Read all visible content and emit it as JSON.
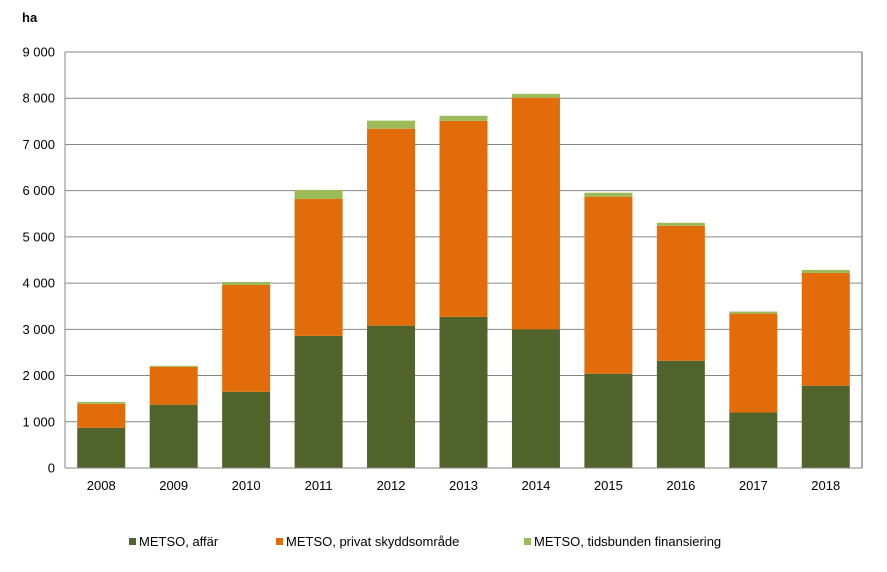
{
  "chart_data": {
    "type": "bar",
    "stacked": true,
    "title": "",
    "ylabel": "ha",
    "xlabel": "",
    "ylim": [
      0,
      9000
    ],
    "yticks": [
      0,
      1000,
      2000,
      3000,
      4000,
      5000,
      6000,
      7000,
      8000,
      9000
    ],
    "ytick_labels": [
      "0",
      "1 000",
      "2 000",
      "3 000",
      "4 000",
      "5 000",
      "6 000",
      "7 000",
      "8 000",
      "9 000"
    ],
    "grid": true,
    "legend_position": "bottom",
    "categories": [
      "2008",
      "2009",
      "2010",
      "2011",
      "2012",
      "2013",
      "2014",
      "2015",
      "2016",
      "2017",
      "2018"
    ],
    "series": [
      {
        "name": "METSO, affär",
        "color": "#50632a",
        "values": [
          870,
          1370,
          1650,
          2860,
          3080,
          3270,
          3000,
          2040,
          2320,
          1200,
          1780
        ]
      },
      {
        "name": "METSO, privat skyddsområde",
        "color": "#e36c0a",
        "values": [
          520,
          820,
          2310,
          2960,
          4260,
          4240,
          5010,
          3830,
          2920,
          2140,
          2440
        ]
      },
      {
        "name": "METSO, tidsbunden finansiering",
        "color": "#9bbb59",
        "values": [
          40,
          20,
          65,
          195,
          175,
          110,
          85,
          85,
          65,
          45,
          65
        ]
      }
    ]
  }
}
